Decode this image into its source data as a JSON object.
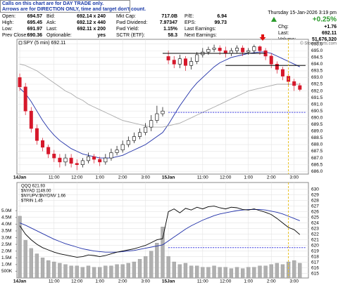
{
  "header": {
    "info_box": [
      "Calls on this chart are for DAY TRADE only.",
      "Arrows are for DIRECTION ONLY, time and target don't count."
    ],
    "columns": [
      [
        [
          "Open:",
          "694.57"
        ],
        [
          "High:",
          "695.45"
        ],
        [
          "Low:",
          "691.97"
        ],
        [
          "Prev Close:",
          "690.36"
        ]
      ],
      [
        [
          "Bid:",
          "692.14 x 240"
        ],
        [
          "Ask:",
          "692.12 x 440"
        ],
        [
          "Last:",
          "692.11 x 200"
        ],
        [
          "Optionable:",
          "yes"
        ]
      ],
      [
        [
          "Mkt Cap:",
          "717.0B"
        ],
        [
          "Fwd Dividend:",
          "7.97347"
        ],
        [
          "Fwd Yield:",
          "1.15%"
        ],
        [
          "SCTR (ETF):",
          "58.3"
        ]
      ],
      [
        [
          "P/E:",
          "6.94"
        ],
        [
          "EPS:",
          "99.73"
        ],
        [
          "Last Earnings:"
        ],
        [
          "Next Earnings:"
        ]
      ]
    ],
    "date": "Thursday 15-Jan-2026 3:19 pm",
    "change_pct": "+0.25%",
    "right_rows": [
      [
        "Chg:",
        "+1.76"
      ],
      [
        "Last:",
        "692.11"
      ],
      [
        "Volume:",
        "51,676,320"
      ]
    ]
  },
  "chart_data": [
    {
      "type": "candlestick",
      "legend": "SPY (5 min) 692.11",
      "credit": "© StockCharts.com",
      "x": [
        0,
        1,
        2,
        3,
        4,
        5,
        6,
        7,
        8,
        9,
        10,
        11,
        12,
        13,
        14,
        15,
        16,
        17,
        18,
        19,
        20,
        21,
        22,
        23,
        24,
        25,
        26,
        27,
        28,
        29,
        30,
        31,
        32,
        33,
        34,
        35,
        36,
        37,
        38,
        39,
        40,
        41,
        42,
        43,
        44,
        45,
        46,
        47,
        48,
        49
      ],
      "open": [
        693.0,
        692.3,
        690.5,
        689.2,
        688.3,
        687.8,
        687.3,
        687.0,
        686.7,
        687.0,
        686.6,
        686.5,
        686.8,
        687.1,
        686.9,
        686.7,
        687.0,
        687.4,
        687.6,
        688.0,
        688.3,
        688.6,
        688.9,
        689.3,
        689.8,
        690.3,
        694.57,
        694.3,
        694.0,
        694.4,
        693.9,
        694.2,
        694.7,
        694.9,
        695.1,
        695.2,
        695.0,
        694.8,
        695.0,
        695.2,
        694.9,
        695.0,
        695.3,
        695.0,
        694.6,
        694.0,
        693.6,
        693.1,
        692.7,
        692.4
      ],
      "high": [
        693.3,
        692.6,
        690.8,
        689.5,
        688.5,
        688.0,
        687.6,
        687.3,
        687.3,
        687.3,
        686.9,
        687.0,
        687.4,
        687.3,
        687.1,
        687.3,
        687.7,
        687.9,
        688.3,
        688.6,
        688.9,
        689.2,
        689.6,
        690.2,
        690.9,
        690.8,
        695.0,
        694.6,
        694.7,
        694.6,
        694.5,
        694.9,
        695.2,
        695.3,
        695.45,
        695.4,
        695.3,
        695.2,
        695.4,
        695.4,
        695.2,
        695.45,
        695.4,
        695.2,
        694.8,
        694.2,
        693.8,
        693.3,
        692.9,
        692.6
      ],
      "low": [
        692.0,
        690.2,
        688.9,
        688.0,
        687.5,
        687.0,
        686.7,
        686.3,
        686.4,
        686.3,
        686.1,
        686.3,
        686.6,
        686.6,
        686.4,
        686.5,
        686.8,
        687.2,
        687.4,
        687.8,
        688.1,
        688.4,
        688.7,
        689.0,
        689.6,
        690.1,
        694.0,
        693.7,
        693.7,
        693.5,
        693.6,
        694.0,
        694.5,
        694.7,
        694.9,
        694.7,
        694.5,
        694.6,
        694.8,
        694.6,
        694.7,
        694.8,
        694.7,
        694.3,
        693.7,
        693.3,
        692.8,
        692.4,
        692.0,
        691.97
      ],
      "close": [
        692.3,
        690.5,
        689.2,
        688.3,
        687.8,
        687.3,
        687.0,
        686.7,
        687.0,
        686.6,
        686.5,
        686.8,
        687.1,
        686.9,
        686.7,
        687.0,
        687.4,
        687.6,
        688.0,
        688.3,
        688.6,
        688.9,
        689.3,
        689.8,
        690.3,
        690.5,
        694.3,
        694.0,
        694.4,
        693.9,
        694.2,
        694.7,
        694.9,
        695.1,
        695.2,
        695.0,
        694.8,
        695.0,
        695.2,
        694.9,
        695.0,
        695.3,
        695.0,
        694.6,
        694.0,
        693.6,
        693.1,
        692.7,
        692.4,
        692.11
      ],
      "up_color": "#ffffff",
      "down_color": "#d6182b",
      "overlays": [
        {
          "color": "#1f2fa8",
          "values": [
            692.2,
            691.8,
            691.2,
            690.5,
            689.8,
            689.2,
            688.7,
            688.3,
            688.0,
            687.7,
            687.5,
            687.3,
            687.2,
            687.1,
            687.0,
            687.0,
            687.0,
            687.1,
            687.2,
            687.4,
            687.6,
            687.8,
            688.0,
            688.3,
            688.6,
            688.9,
            689.5,
            690.2,
            690.9,
            691.5,
            692.1,
            692.6,
            693.0,
            693.4,
            693.8,
            694.1,
            694.3,
            694.5,
            694.6,
            694.7,
            694.8,
            694.85,
            694.9,
            694.9,
            694.8,
            694.6,
            694.4,
            694.2,
            694.0,
            693.8
          ]
        },
        {
          "color": "#aaaaaa",
          "values": [
            694.0,
            693.9,
            693.7,
            693.5,
            693.2,
            692.9,
            692.6,
            692.3,
            692.0,
            691.8,
            691.5,
            691.3,
            691.0,
            690.8,
            690.6,
            690.4,
            690.2,
            690.0,
            689.8,
            689.7,
            689.6,
            689.5,
            689.4,
            689.3,
            689.3,
            689.3,
            689.4,
            689.5,
            689.6,
            689.8,
            690.0,
            690.2,
            690.4,
            690.6,
            690.8,
            691.0,
            691.2,
            691.4,
            691.6,
            691.8,
            692.0,
            692.1,
            692.2,
            692.3,
            692.4,
            692.5,
            692.5,
            692.5,
            692.5,
            692.5
          ]
        }
      ],
      "xlim": [
        -0.5,
        50.5
      ],
      "xticks": [
        {
          "value": 0,
          "label": "14Jan"
        },
        {
          "value": 6,
          "label": "11:00"
        },
        {
          "value": 10,
          "label": "12:00"
        },
        {
          "value": 14,
          "label": "1:00"
        },
        {
          "value": 18,
          "label": "2:00"
        },
        {
          "value": 22,
          "label": "3:00"
        },
        {
          "value": 26,
          "label": "15Jan"
        },
        {
          "value": 32,
          "label": "11:00"
        },
        {
          "value": 36,
          "label": "12:00"
        },
        {
          "value": 40,
          "label": "1:00"
        },
        {
          "value": 44,
          "label": "2:00"
        },
        {
          "value": 48,
          "label": "3:00"
        }
      ],
      "ylim": [
        685.8,
        695.85
      ],
      "yticks": [
        {
          "value": 686,
          "label": "686.0"
        },
        686.5,
        {
          "value": 687,
          "label": "687.0"
        },
        687.5,
        {
          "value": 688,
          "label": "688.0"
        },
        688.5,
        {
          "value": 689,
          "label": "689.0"
        },
        689.5,
        {
          "value": 690,
          "label": "690.0"
        },
        690.5,
        {
          "value": 691,
          "label": "691.0"
        },
        691.5,
        {
          "value": 692,
          "label": "692.0"
        },
        692.5,
        {
          "value": 693,
          "label": "693.0"
        },
        693.5,
        {
          "value": 694,
          "label": "694.0"
        },
        694.5,
        {
          "value": 695,
          "label": "695.0"
        },
        695.5
      ],
      "grid": true,
      "levels": [
        {
          "y": 694.8,
          "x": [
            25,
            43
          ],
          "color": "#000000",
          "dash": false
        },
        {
          "y": 693.9,
          "x": [
            36,
            50
          ],
          "color": "#000000",
          "dash": false
        },
        {
          "y": 690.4,
          "x": [
            26,
            50
          ],
          "color": "#3a3adf",
          "dash": true
        }
      ],
      "vlines": [
        {
          "x": 47,
          "color": "#e8c020"
        }
      ],
      "arrows": [
        {
          "x": 42.5,
          "y": 695.8,
          "color": "#e01010"
        }
      ]
    },
    {
      "type": "line",
      "legends": [
        "QQQ 621.93",
        "$NYAD 1149.00",
        "$NYUPV:$NYDNV 1.66",
        "$TRIN 1.45"
      ],
      "x": [
        0,
        1,
        2,
        3,
        4,
        5,
        6,
        7,
        8,
        9,
        10,
        11,
        12,
        13,
        14,
        15,
        16,
        17,
        18,
        19,
        20,
        21,
        22,
        23,
        24,
        25,
        26,
        27,
        28,
        29,
        30,
        31,
        32,
        33,
        34,
        35,
        36,
        37,
        38,
        39,
        40,
        41,
        42,
        43,
        44,
        45,
        46,
        47,
        48,
        49
      ],
      "series": [
        {
          "type": "bar",
          "axis": "y2",
          "color": "#b0b0b0",
          "values": [
            4600000,
            2800000,
            2200000,
            1800000,
            1500000,
            1300000,
            1200000,
            1100000,
            1000000,
            900000,
            900000,
            800000,
            900000,
            800000,
            800000,
            900000,
            900000,
            1000000,
            1000000,
            1100000,
            1200000,
            1400000,
            1600000,
            2000000,
            2600000,
            3800000,
            1600000,
            1200000,
            1000000,
            1100000,
            900000,
            900000,
            800000,
            800000,
            900000,
            800000,
            800000,
            700000,
            800000,
            700000,
            800000,
            800000,
            900000,
            900000,
            1000000,
            1100000,
            1000000,
            1200000,
            1300000,
            1100000
          ]
        },
        {
          "type": "line",
          "color": "#1f2fa8",
          "values": [
            624,
            623.6,
            623.1,
            622.6,
            622.1,
            621.6,
            621.1,
            620.7,
            620.3,
            620.0,
            619.7,
            619.4,
            619.2,
            619.0,
            618.9,
            618.8,
            618.8,
            618.8,
            618.9,
            619.0,
            619.1,
            619.3,
            619.5,
            619.7,
            619.9,
            620.1,
            620.8,
            621.5,
            622.2,
            622.9,
            623.5,
            624.0,
            624.5,
            624.9,
            625.3,
            625.6,
            625.8,
            626.0,
            626.2,
            626.3,
            626.4,
            626.4,
            626.4,
            626.3,
            626.1,
            625.9,
            625.6,
            625.2,
            624.8,
            624.4
          ]
        },
        {
          "type": "line",
          "color": "#000000",
          "values": [
            623.5,
            622.0,
            621.0,
            620.2,
            619.6,
            619.2,
            618.8,
            618.5,
            618.3,
            618.1,
            617.9,
            618.0,
            618.3,
            618.2,
            618.0,
            618.2,
            618.5,
            618.8,
            619.0,
            619.2,
            619.4,
            619.7,
            620.0,
            620.5,
            621.0,
            621.2,
            626.0,
            626.5,
            625.8,
            626.6,
            626.3,
            626.8,
            626.5,
            626.9,
            627.0,
            626.7,
            626.5,
            626.8,
            626.7,
            626.4,
            626.3,
            626.5,
            626.2,
            625.9,
            625.5,
            624.8,
            624.0,
            623.2,
            622.8,
            621.93
          ]
        }
      ],
      "xlim": [
        -0.5,
        50.5
      ],
      "xticks": [
        {
          "value": 0,
          "label": "14Jan"
        },
        {
          "value": 6,
          "label": "11:00"
        },
        {
          "value": 10,
          "label": "12:00"
        },
        {
          "value": 14,
          "label": "1:00"
        },
        {
          "value": 18,
          "label": "2:00"
        },
        {
          "value": 22,
          "label": "3:00"
        },
        {
          "value": 26,
          "label": "15Jan"
        },
        {
          "value": 32,
          "label": "11:00"
        },
        {
          "value": 36,
          "label": "12:00"
        },
        {
          "value": 40,
          "label": "1:00"
        },
        {
          "value": 44,
          "label": "2:00"
        },
        {
          "value": 48,
          "label": "3:00"
        }
      ],
      "ylim": [
        614.2,
        631.2
      ],
      "yticks": [
        615,
        616,
        617,
        618,
        619,
        620,
        621,
        622,
        623,
        624,
        625,
        626,
        627,
        628,
        629,
        630
      ],
      "y2lim": [
        0,
        7100000
      ],
      "y2ticks": [
        {
          "value": 500000,
          "label": "500K"
        },
        {
          "value": 1000000,
          "label": "1.0M"
        },
        {
          "value": 1500000,
          "label": "1.5M"
        },
        {
          "value": 2000000,
          "label": "2.0M"
        },
        {
          "value": 2500000,
          "label": "2.5M"
        },
        {
          "value": 3000000,
          "label": "3.0M"
        },
        {
          "value": 3500000,
          "label": "3.5M"
        },
        {
          "value": 4000000,
          "label": "4.0M"
        },
        {
          "value": 4500000,
          "label": "4.5M"
        },
        {
          "value": 5000000,
          "label": "5.0M"
        }
      ],
      "grid": true,
      "levels": [
        {
          "y": 619.6,
          "x": [
            26,
            50
          ],
          "color": "#3a3adf",
          "dash": true
        }
      ],
      "vlines": [
        {
          "x": 47,
          "color": "#e8c020"
        }
      ]
    }
  ]
}
